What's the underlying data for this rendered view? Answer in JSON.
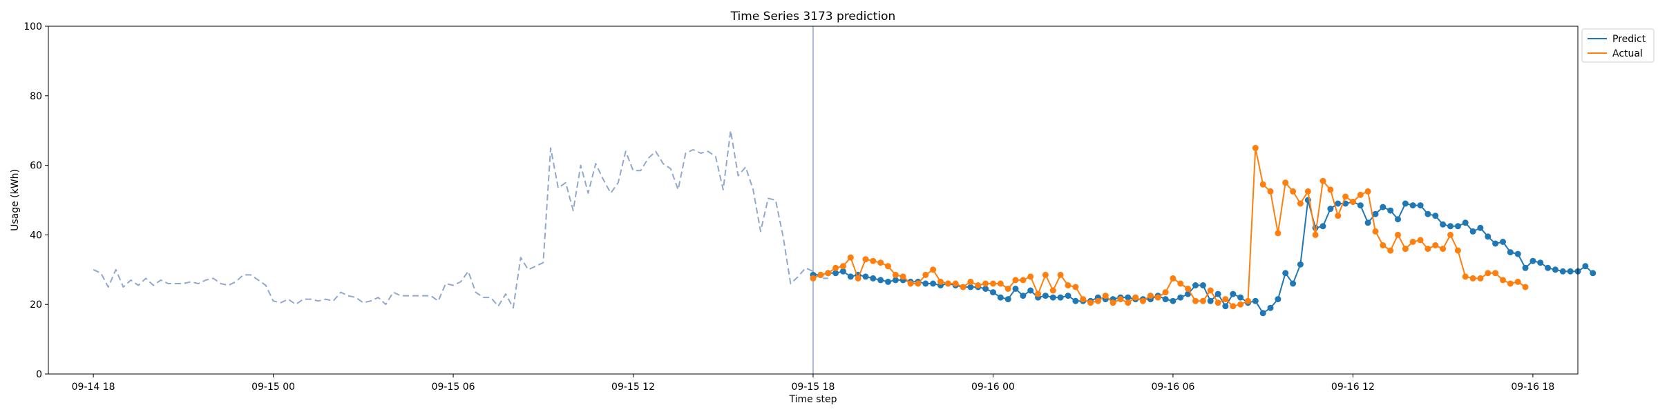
{
  "chart_data": {
    "type": "line",
    "title": "Time Series 3173 prediction",
    "xlabel": "Time step",
    "ylabel": "Usage (kWh)",
    "ylim": [
      0,
      100
    ],
    "yticks": [
      0,
      20,
      40,
      60,
      80,
      100
    ],
    "xlim": [
      "2023-09-14 16:30",
      "2023-09-16 19:30"
    ],
    "xticks": [
      {
        "t": "2023-09-14 18:00",
        "label": "09-14 18"
      },
      {
        "t": "2023-09-15 00:00",
        "label": "09-15 00"
      },
      {
        "t": "2023-09-15 06:00",
        "label": "09-15 06"
      },
      {
        "t": "2023-09-15 12:00",
        "label": "09-15 12"
      },
      {
        "t": "2023-09-15 18:00",
        "label": "09-15 18"
      },
      {
        "t": "2023-09-16 00:00",
        "label": "09-16 00"
      },
      {
        "t": "2023-09-16 06:00",
        "label": "09-16 06"
      },
      {
        "t": "2023-09-16 12:00",
        "label": "09-16 12"
      },
      {
        "t": "2023-09-16 18:00",
        "label": "09-16 18"
      }
    ],
    "split_time": "2023-09-15 18:00",
    "step_minutes": 15,
    "legend_position": "upper-right, outside plot area",
    "colors": {
      "predict": "#1f77b4",
      "actual": "#ff7f0e",
      "history": "#8fa8cc",
      "split_line": "#8ea2d0"
    },
    "series": [
      {
        "name": "",
        "style": "dashed",
        "start": "2023-09-14 18:00",
        "values": [
          30,
          29,
          25,
          30,
          25,
          27,
          25.5,
          27.5,
          25.5,
          27,
          26,
          26,
          26,
          26.5,
          26,
          27,
          27.5,
          26,
          25.5,
          26.5,
          28.5,
          28.5,
          27,
          25.5,
          21,
          20.5,
          21.5,
          20,
          21.5,
          21.5,
          21,
          21.5,
          21,
          23.5,
          22.5,
          22,
          20.5,
          21,
          22,
          20,
          23.5,
          22.5,
          22.5,
          22.5,
          22.5,
          22.5,
          21,
          26,
          25.5,
          26.5,
          29.5,
          23.5,
          22,
          22,
          19.5,
          23,
          19,
          33.5,
          30,
          31,
          32,
          65,
          53.5,
          55,
          47,
          60,
          52,
          60.5,
          56,
          52,
          55,
          64,
          58.5,
          58.5,
          62,
          64,
          60.5,
          59,
          53,
          63.5,
          64.5,
          63.5,
          64,
          62.5,
          53,
          70,
          57,
          59.5,
          53,
          41,
          50.5,
          50,
          39.5,
          26,
          28,
          30.5,
          29.5,
          27.5,
          27.5
        ]
      },
      {
        "name": "Predict",
        "style": "solid-markers",
        "start": "2023-09-15 18:00",
        "values": [
          28.5,
          28.5,
          29,
          29,
          29.5,
          28,
          28.5,
          28,
          27.5,
          27,
          26.5,
          27,
          27,
          26.5,
          26.5,
          26,
          26,
          25.5,
          26,
          25.5,
          25,
          25,
          25,
          24.5,
          23.5,
          22,
          21.5,
          24.5,
          22.5,
          24,
          22,
          22.5,
          22,
          22,
          22.5,
          21,
          21,
          21,
          22,
          21.5,
          21.5,
          22,
          22,
          21.5,
          21.5,
          21.5,
          22.5,
          21.5,
          21,
          22,
          23,
          25.5,
          25.5,
          21,
          23,
          19.5,
          23,
          22,
          20.5,
          21,
          17.5,
          19,
          21.5,
          29,
          26,
          31.5,
          50,
          42,
          42.5,
          47.5,
          49,
          49,
          49.5,
          48.5,
          43.5,
          46,
          48,
          47,
          44.5,
          49,
          48.5,
          48.5,
          46,
          45.5,
          43,
          42.5,
          42.5,
          43.5,
          41,
          42,
          39.5,
          37.5,
          38,
          35,
          34.5,
          30.5,
          32.5,
          32,
          30.5,
          30,
          29.5,
          29.5,
          29.5,
          31,
          29
        ]
      },
      {
        "name": "Actual",
        "style": "solid-markers",
        "start": "2023-09-15 18:00",
        "values": [
          27.5,
          28.5,
          29,
          30.5,
          31,
          33.5,
          27.5,
          33,
          32.5,
          32,
          31,
          28.5,
          28,
          26,
          26,
          28.5,
          30,
          26.5,
          26,
          26,
          25,
          26.5,
          25.5,
          26,
          26,
          26,
          24.5,
          27,
          27,
          28,
          23,
          28.5,
          24,
          28.5,
          25.5,
          25,
          21.5,
          20.5,
          21,
          22.5,
          20.5,
          21.5,
          20.5,
          22,
          21,
          22.5,
          22,
          23.5,
          27.5,
          26,
          24.5,
          21,
          21,
          24,
          20.5,
          21.5,
          19.5,
          20,
          21,
          65,
          54.5,
          52.5,
          40.5,
          55,
          52.5,
          49,
          52.5,
          40,
          55.5,
          53,
          45.5,
          51,
          49.5,
          51.5,
          52.5,
          41,
          37,
          35.5,
          40,
          36,
          38,
          38.5,
          36,
          37,
          36,
          40,
          35.5,
          28,
          27.5,
          27.5,
          29,
          29,
          27,
          26,
          26.5,
          25
        ]
      }
    ]
  }
}
